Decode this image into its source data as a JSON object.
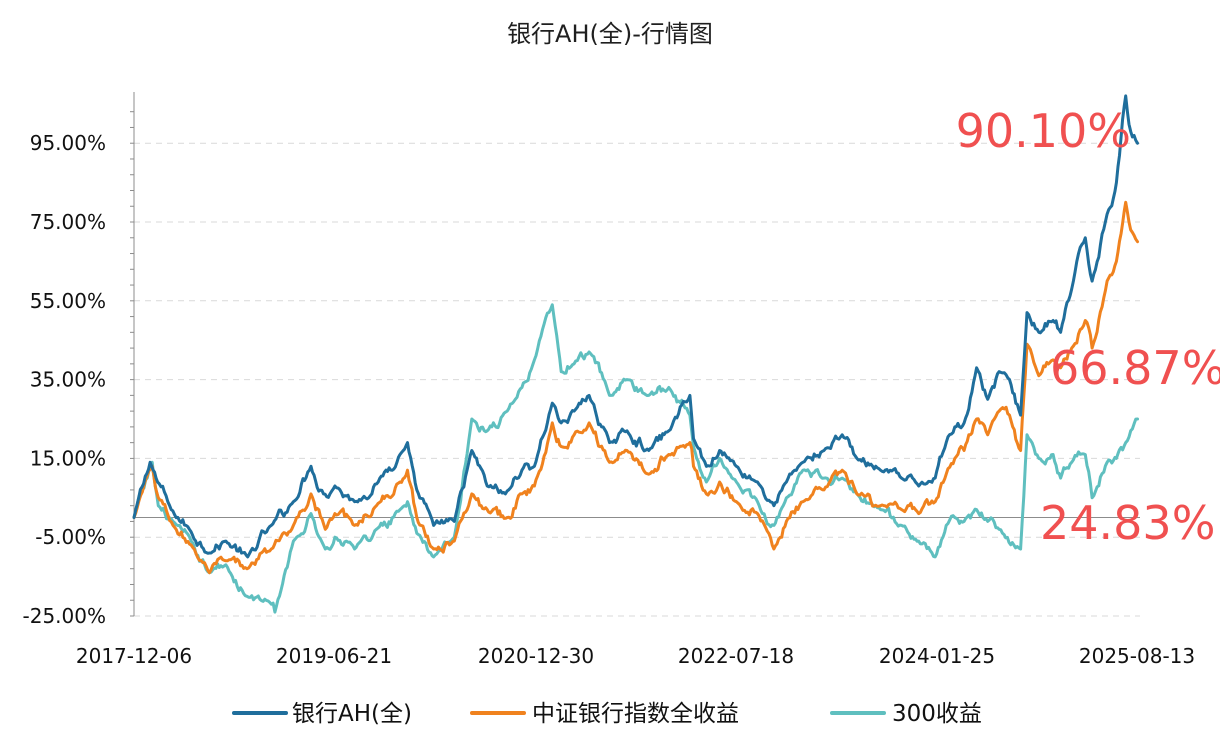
{
  "chart_data": {
    "type": "line",
    "title": "银行AH(全)-行情图",
    "xlabel": "",
    "ylabel": "",
    "x_tick_labels": [
      "2017-12-06",
      "2019-06-21",
      "2020-12-30",
      "2022-07-18",
      "2024-01-25",
      "2025-08-13"
    ],
    "y_tick_labels": [
      "95.00%",
      "75.00%",
      "55.00%",
      "35.00%",
      "15.00%",
      "-5.00%",
      "-25.00%"
    ],
    "y_ticks": [
      95,
      75,
      55,
      35,
      15,
      -5,
      -25
    ],
    "ylim": [
      -25,
      108
    ],
    "x_range": [
      "2017-12-06",
      "2025-08-20"
    ],
    "grid": true,
    "legend_position": "bottom",
    "series": [
      {
        "name": "银行AH(全)",
        "color": "#1f6e9c",
        "points": [
          [
            "2017-12-06",
            0
          ],
          [
            "2018-01-20",
            14
          ],
          [
            "2018-02-10",
            9
          ],
          [
            "2018-03-20",
            2
          ],
          [
            "2018-05-10",
            -3
          ],
          [
            "2018-07-05",
            -9
          ],
          [
            "2018-08-20",
            -6
          ],
          [
            "2018-10-20",
            -10
          ],
          [
            "2018-12-25",
            -2
          ],
          [
            "2019-02-25",
            4
          ],
          [
            "2019-04-15",
            13
          ],
          [
            "2019-05-20",
            6
          ],
          [
            "2019-06-21",
            8
          ],
          [
            "2019-08-15",
            4
          ],
          [
            "2019-10-20",
            9
          ],
          [
            "2019-12-20",
            16
          ],
          [
            "2020-01-10",
            19
          ],
          [
            "2020-02-05",
            7
          ],
          [
            "2020-03-23",
            -2
          ],
          [
            "2020-05-20",
            -1
          ],
          [
            "2020-07-08",
            17
          ],
          [
            "2020-08-20",
            8
          ],
          [
            "2020-10-10",
            6
          ],
          [
            "2020-11-25",
            12
          ],
          [
            "2020-12-30",
            13
          ],
          [
            "2021-02-18",
            29
          ],
          [
            "2021-03-15",
            24
          ],
          [
            "2021-04-20",
            27
          ],
          [
            "2021-06-01",
            31
          ],
          [
            "2021-07-28",
            19
          ],
          [
            "2021-09-15",
            22
          ],
          [
            "2021-11-15",
            17
          ],
          [
            "2022-01-10",
            22
          ],
          [
            "2022-03-10",
            31
          ],
          [
            "2022-03-20",
            20
          ],
          [
            "2022-04-25",
            13
          ],
          [
            "2022-06-01",
            17
          ],
          [
            "2022-07-18",
            13
          ],
          [
            "2022-09-15",
            9
          ],
          [
            "2022-10-31",
            3
          ],
          [
            "2022-12-05",
            9
          ],
          [
            "2023-01-20",
            14
          ],
          [
            "2023-03-20",
            17
          ],
          [
            "2023-05-10",
            21
          ],
          [
            "2023-06-20",
            15
          ],
          [
            "2023-08-25",
            12
          ],
          [
            "2023-10-23",
            10
          ],
          [
            "2023-12-10",
            8
          ],
          [
            "2024-01-25",
            10
          ],
          [
            "2024-02-25",
            19
          ],
          [
            "2024-03-20",
            23
          ],
          [
            "2024-04-15",
            24
          ],
          [
            "2024-05-20",
            38
          ],
          [
            "2024-06-20",
            30
          ],
          [
            "2024-07-22",
            37
          ],
          [
            "2024-08-20",
            35
          ],
          [
            "2024-09-20",
            26
          ],
          [
            "2024-10-08",
            52
          ],
          [
            "2024-11-10",
            47
          ],
          [
            "2024-12-20",
            50
          ],
          [
            "2025-01-10",
            47
          ],
          [
            "2025-02-10",
            58
          ],
          [
            "2025-03-20",
            71
          ],
          [
            "2025-04-08",
            60
          ],
          [
            "2025-05-20",
            77
          ],
          [
            "2025-06-15",
            85
          ],
          [
            "2025-07-11",
            107
          ],
          [
            "2025-07-25",
            98
          ],
          [
            "2025-08-13",
            95
          ]
        ]
      },
      {
        "name": "中证银行指数全收益",
        "color": "#f0821e",
        "points": [
          [
            "2017-12-06",
            0
          ],
          [
            "2018-01-26",
            13
          ],
          [
            "2018-02-12",
            5
          ],
          [
            "2018-03-25",
            -2
          ],
          [
            "2018-05-15",
            -7
          ],
          [
            "2018-07-05",
            -14
          ],
          [
            "2018-08-20",
            -11
          ],
          [
            "2018-10-18",
            -13
          ],
          [
            "2018-12-25",
            -8
          ],
          [
            "2019-02-25",
            -2
          ],
          [
            "2019-04-15",
            6
          ],
          [
            "2019-05-25",
            -3
          ],
          [
            "2019-06-21",
            1
          ],
          [
            "2019-08-15",
            -2
          ],
          [
            "2019-10-15",
            3
          ],
          [
            "2019-12-20",
            9
          ],
          [
            "2020-01-10",
            12
          ],
          [
            "2020-02-05",
            0
          ],
          [
            "2020-03-23",
            -8
          ],
          [
            "2020-05-20",
            -6
          ],
          [
            "2020-07-08",
            6
          ],
          [
            "2020-08-20",
            2
          ],
          [
            "2020-10-15",
            0
          ],
          [
            "2020-11-25",
            6
          ],
          [
            "2020-12-30",
            8
          ],
          [
            "2021-02-18",
            24
          ],
          [
            "2021-03-15",
            18
          ],
          [
            "2021-04-20",
            21
          ],
          [
            "2021-06-01",
            24
          ],
          [
            "2021-07-28",
            14
          ],
          [
            "2021-09-15",
            17
          ],
          [
            "2021-11-15",
            11
          ],
          [
            "2022-01-10",
            16
          ],
          [
            "2022-03-10",
            19
          ],
          [
            "2022-03-20",
            13
          ],
          [
            "2022-04-25",
            6
          ],
          [
            "2022-06-01",
            9
          ],
          [
            "2022-07-18",
            4
          ],
          [
            "2022-09-15",
            1
          ],
          [
            "2022-10-31",
            -8
          ],
          [
            "2022-12-05",
            -1
          ],
          [
            "2023-01-20",
            4
          ],
          [
            "2023-03-20",
            7
          ],
          [
            "2023-05-10",
            12
          ],
          [
            "2023-06-20",
            6
          ],
          [
            "2023-08-25",
            3
          ],
          [
            "2023-10-23",
            2
          ],
          [
            "2023-12-10",
            1
          ],
          [
            "2024-01-25",
            4
          ],
          [
            "2024-02-25",
            11
          ],
          [
            "2024-03-20",
            15
          ],
          [
            "2024-04-15",
            17
          ],
          [
            "2024-05-20",
            25
          ],
          [
            "2024-06-20",
            21
          ],
          [
            "2024-07-22",
            27
          ],
          [
            "2024-08-20",
            26
          ],
          [
            "2024-09-20",
            17
          ],
          [
            "2024-10-08",
            44
          ],
          [
            "2024-11-10",
            36
          ],
          [
            "2024-12-20",
            40
          ],
          [
            "2025-01-10",
            38
          ],
          [
            "2025-02-10",
            43
          ],
          [
            "2025-03-20",
            50
          ],
          [
            "2025-04-08",
            43
          ],
          [
            "2025-05-20",
            60
          ],
          [
            "2025-06-15",
            65
          ],
          [
            "2025-07-11",
            80
          ],
          [
            "2025-07-25",
            73
          ],
          [
            "2025-08-13",
            70
          ]
        ]
      },
      {
        "name": "300收益",
        "color": "#5fbfbf",
        "points": [
          [
            "2017-12-06",
            0
          ],
          [
            "2018-01-26",
            14
          ],
          [
            "2018-02-12",
            3
          ],
          [
            "2018-03-25",
            -1
          ],
          [
            "2018-05-15",
            -6
          ],
          [
            "2018-07-05",
            -14
          ],
          [
            "2018-08-20",
            -12
          ],
          [
            "2018-10-18",
            -20
          ],
          [
            "2018-12-25",
            -22
          ],
          [
            "2019-01-04",
            -24
          ],
          [
            "2019-02-25",
            -6
          ],
          [
            "2019-04-15",
            1
          ],
          [
            "2019-05-25",
            -8
          ],
          [
            "2019-06-21",
            -5
          ],
          [
            "2019-08-15",
            -8
          ],
          [
            "2019-10-15",
            -3
          ],
          [
            "2019-12-20",
            2
          ],
          [
            "2020-01-10",
            4
          ],
          [
            "2020-02-05",
            -4
          ],
          [
            "2020-03-23",
            -10
          ],
          [
            "2020-05-20",
            -5
          ],
          [
            "2020-07-08",
            25
          ],
          [
            "2020-08-20",
            22
          ],
          [
            "2020-10-15",
            27
          ],
          [
            "2020-11-25",
            33
          ],
          [
            "2020-12-30",
            40
          ],
          [
            "2021-02-18",
            54
          ],
          [
            "2021-03-15",
            37
          ],
          [
            "2021-04-20",
            39
          ],
          [
            "2021-06-01",
            42
          ],
          [
            "2021-07-28",
            31
          ],
          [
            "2021-09-15",
            35
          ],
          [
            "2021-11-15",
            31
          ],
          [
            "2022-01-10",
            33
          ],
          [
            "2022-03-10",
            26
          ],
          [
            "2022-03-20",
            18
          ],
          [
            "2022-04-25",
            9
          ],
          [
            "2022-06-01",
            15
          ],
          [
            "2022-07-18",
            9
          ],
          [
            "2022-09-15",
            4
          ],
          [
            "2022-10-31",
            -2
          ],
          [
            "2022-12-05",
            5
          ],
          [
            "2023-01-20",
            12
          ],
          [
            "2023-03-20",
            10
          ],
          [
            "2023-05-10",
            10
          ],
          [
            "2023-06-20",
            6
          ],
          [
            "2023-08-25",
            2
          ],
          [
            "2023-10-23",
            -2
          ],
          [
            "2023-12-10",
            -6
          ],
          [
            "2024-01-25",
            -10
          ],
          [
            "2024-02-25",
            -2
          ],
          [
            "2024-03-20",
            0
          ],
          [
            "2024-04-15",
            -1
          ],
          [
            "2024-05-20",
            2
          ],
          [
            "2024-06-20",
            -1
          ],
          [
            "2024-07-22",
            -3
          ],
          [
            "2024-09-20",
            -8
          ],
          [
            "2024-10-08",
            21
          ],
          [
            "2024-11-10",
            15
          ],
          [
            "2024-12-20",
            16
          ],
          [
            "2025-01-10",
            10
          ],
          [
            "2025-02-10",
            14
          ],
          [
            "2025-03-20",
            16
          ],
          [
            "2025-04-08",
            5
          ],
          [
            "2025-05-20",
            14
          ],
          [
            "2025-06-15",
            15
          ],
          [
            "2025-07-11",
            19
          ],
          [
            "2025-07-25",
            22
          ],
          [
            "2025-08-13",
            25
          ]
        ]
      }
    ],
    "annotations": [
      {
        "text": "90.10%",
        "color": "#f05050"
      },
      {
        "text": "66.87%",
        "color": "#f05050"
      },
      {
        "text": "24.83%",
        "color": "#f05050"
      }
    ]
  }
}
